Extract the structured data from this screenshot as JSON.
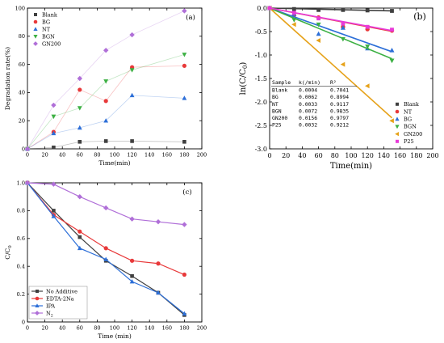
{
  "chart_data": [
    {
      "type": "scatter",
      "panel_label": "(a)",
      "xlabel": "Time(min)",
      "ylabel": "Degradation rate(%)",
      "xlim": [
        0,
        200
      ],
      "ylim": [
        0,
        100
      ],
      "xticks": [
        0,
        20,
        40,
        60,
        80,
        100,
        120,
        140,
        160,
        180,
        200
      ],
      "yticks": [
        0,
        20,
        40,
        60,
        80,
        100
      ],
      "legend_position": "top-left",
      "lines_connecting_points": true,
      "series": [
        {
          "name": "Blank",
          "color": "#404040",
          "marker": "square",
          "x": [
            0,
            30,
            60,
            90,
            120,
            180
          ],
          "y": [
            0,
            1,
            5,
            5.5,
            5.5,
            5
          ]
        },
        {
          "name": "BG",
          "color": "#e8393a",
          "marker": "circle",
          "x": [
            0,
            30,
            60,
            90,
            120,
            180
          ],
          "y": [
            0,
            12,
            42,
            34,
            58,
            59
          ]
        },
        {
          "name": "NT",
          "color": "#2d6fd8",
          "marker": "triangle-up",
          "x": [
            0,
            30,
            60,
            90,
            120,
            180
          ],
          "y": [
            0,
            11,
            15,
            20,
            38,
            36
          ]
        },
        {
          "name": "BGN",
          "color": "#3cb043",
          "marker": "triangle-down",
          "x": [
            0,
            30,
            60,
            90,
            120,
            180
          ],
          "y": [
            0,
            23,
            29,
            48,
            56,
            67
          ]
        },
        {
          "name": "GN200",
          "color": "#b06fd8",
          "marker": "diamond",
          "x": [
            0,
            30,
            60,
            90,
            120,
            180
          ],
          "y": [
            0,
            31,
            50,
            70,
            81,
            98
          ]
        }
      ]
    },
    {
      "type": "scatter",
      "panel_label": "(b)",
      "xlabel": "Time(min)",
      "ylabel": "ln(C/C0)",
      "xlim": [
        0,
        200
      ],
      "ylim": [
        -3.0,
        0
      ],
      "xticks": [
        0,
        20,
        40,
        60,
        80,
        100,
        120,
        140,
        160,
        180,
        200
      ],
      "yticks": [
        0,
        -0.5,
        -1.0,
        -1.5,
        -2.0,
        -2.5,
        -3.0
      ],
      "legend_position": "bottom-right",
      "series": [
        {
          "name": "Blank",
          "color": "#404040",
          "marker": "square",
          "fit_slope": -0.0004,
          "x": [
            0,
            30,
            60,
            90,
            120,
            150
          ],
          "y": [
            0,
            -0.02,
            -0.04,
            -0.04,
            -0.05,
            -0.06
          ]
        },
        {
          "name": "NT",
          "color": "#e8393a",
          "marker": "circle",
          "fit_slope": -0.0033,
          "x": [
            0,
            30,
            60,
            90,
            120,
            150
          ],
          "y": [
            0,
            -0.15,
            -0.2,
            -0.4,
            -0.45,
            -0.48
          ]
        },
        {
          "name": "BG",
          "color": "#2d6fd8",
          "marker": "triangle-up",
          "fit_slope": -0.0062,
          "x": [
            0,
            30,
            60,
            90,
            120,
            150
          ],
          "y": [
            0,
            -0.12,
            -0.55,
            -0.42,
            -0.86,
            -0.9
          ]
        },
        {
          "name": "BGN",
          "color": "#3cb043",
          "marker": "triangle-down",
          "fit_slope": -0.0072,
          "x": [
            0,
            30,
            60,
            90,
            120,
            150
          ],
          "y": [
            0,
            -0.25,
            -0.35,
            -0.66,
            -0.82,
            -1.12
          ]
        },
        {
          "name": "GN200",
          "color": "#e6a21a",
          "marker": "triangle-left",
          "fit_slope": -0.0156,
          "x": [
            0,
            30,
            60,
            90,
            120,
            150
          ],
          "y": [
            0,
            -0.35,
            -0.69,
            -1.2,
            -1.66,
            -2.4
          ]
        },
        {
          "name": "P25",
          "color": "#e83ad8",
          "marker": "square",
          "fit_slope": -0.0032,
          "x": [
            0,
            30,
            60,
            90,
            120,
            150
          ],
          "y": [
            0,
            -0.1,
            -0.22,
            -0.33,
            -0.4,
            -0.46
          ]
        }
      ],
      "table": {
        "headers": [
          "Sample",
          "k(/min)",
          "R²"
        ],
        "rows": [
          [
            "Blank",
            "0.0004",
            "0.7041"
          ],
          [
            "BG",
            "0.0062",
            "0.8994"
          ],
          [
            "NT",
            "0.0033",
            "0.9117"
          ],
          [
            "BGN",
            "0.0072",
            "0.9835"
          ],
          [
            "GN200",
            "0.0156",
            "0.9797"
          ],
          [
            "P25",
            "0.0032",
            "0.9212"
          ]
        ]
      }
    },
    {
      "type": "line",
      "panel_label": "(c)",
      "xlabel": "Time (min)",
      "ylabel": "C/C0",
      "xlim": [
        0,
        200
      ],
      "ylim": [
        0,
        1.0
      ],
      "xticks": [
        0,
        20,
        40,
        60,
        80,
        100,
        120,
        140,
        160,
        180,
        200
      ],
      "yticks": [
        0,
        0.2,
        0.4,
        0.6,
        0.8,
        1.0
      ],
      "legend_position": "bottom-left",
      "series": [
        {
          "name": "No Additive",
          "color": "#404040",
          "marker": "square",
          "x": [
            0,
            30,
            60,
            90,
            120,
            150,
            180
          ],
          "y": [
            1.0,
            0.8,
            0.61,
            0.44,
            0.33,
            0.21,
            0.05
          ]
        },
        {
          "name": "EDTA-2Na",
          "color": "#e8393a",
          "marker": "circle",
          "x": [
            0,
            30,
            60,
            90,
            120,
            150,
            180
          ],
          "y": [
            1.0,
            0.77,
            0.65,
            0.53,
            0.44,
            0.42,
            0.34
          ]
        },
        {
          "name": "IPA",
          "color": "#2d6fd8",
          "marker": "triangle-up",
          "x": [
            0,
            30,
            60,
            90,
            120,
            150,
            180
          ],
          "y": [
            1.0,
            0.76,
            0.53,
            0.45,
            0.29,
            0.21,
            0.06
          ]
        },
        {
          "name": "N2",
          "color": "#b06fd8",
          "marker": "diamond",
          "x": [
            0,
            30,
            60,
            90,
            120,
            150,
            180
          ],
          "y": [
            1.0,
            0.99,
            0.9,
            0.82,
            0.74,
            0.72,
            0.7
          ]
        }
      ]
    }
  ]
}
